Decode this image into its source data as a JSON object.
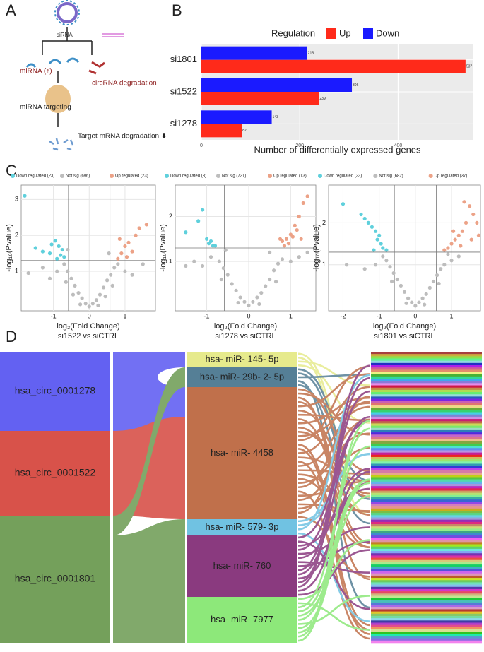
{
  "panel_labels": [
    "A",
    "B",
    "C",
    "D"
  ],
  "panel_a": {
    "sirna": "siRNA",
    "mirna_up": "miRNA (↑)",
    "circ_deg": "circRNA degradation",
    "targeting": "miRNA targeting",
    "target_deg": "Target mRNA degradation ⬇"
  },
  "chart_data": [
    {
      "type": "bar",
      "orientation": "horizontal",
      "legend_title": "Regulation",
      "legend_position": "top",
      "xlabel": "Number of differentially expressed genes",
      "categories": [
        "si1801",
        "si1522",
        "si1278"
      ],
      "series": [
        {
          "name": "Up",
          "color": "#ff2a1a",
          "values": [
            537,
            239,
            82
          ]
        },
        {
          "name": "Down",
          "color": "#1a1aff",
          "values": [
            215,
            306,
            143
          ]
        }
      ],
      "xlim": [
        0,
        553
      ],
      "xticks": [
        0,
        200,
        400
      ],
      "grid": true
    },
    {
      "type": "scatter",
      "xlabel": "log₂(Fold Change)",
      "ylabel": "-log₁₀(Pvalue)",
      "subtitle": "si1522 vs siCTRL",
      "xlim": [
        -1.9,
        1.85
      ],
      "ylim": [
        -0.1,
        3.4
      ],
      "xticks": [
        -1,
        0,
        1
      ],
      "yticks": [
        1,
        2,
        3
      ],
      "hlines": [
        1.3
      ],
      "vlines": [
        -0.58,
        0.58
      ],
      "grid": true,
      "series": [
        {
          "name": "Down regulated (23)",
          "color": "#5fd0dc",
          "x": [
            -1.8,
            -1.5,
            -1.3,
            -1.1,
            -0.95,
            -0.85,
            -0.8,
            -0.75,
            -0.7,
            -0.9,
            -1.05
          ],
          "values": [
            3.1,
            1.65,
            1.55,
            1.5,
            1.85,
            1.7,
            1.45,
            1.6,
            1.4,
            1.35,
            1.75
          ]
        },
        {
          "name": "Not sig (696)",
          "color": "#bdbdbd",
          "x": [
            0,
            0.1,
            -0.1,
            0.2,
            -0.2,
            0.3,
            -0.3,
            0.4,
            -0.4,
            0.5,
            -0.5,
            0.6,
            -0.6,
            0.7,
            -0.7,
            0.8,
            -0.9,
            1.0,
            -1.1,
            1.2,
            -1.3,
            0.55,
            -0.6,
            0.45,
            -0.45,
            0.25,
            -0.25,
            -1.7,
            1.5,
            0.65,
            -0.65
          ],
          "values": [
            0.02,
            0.1,
            0.1,
            0.2,
            0.25,
            0.35,
            0.4,
            0.55,
            0.6,
            0.75,
            0.8,
            0.9,
            1.0,
            1.1,
            1.2,
            1.2,
            1.0,
            1.0,
            0.8,
            0.9,
            1.1,
            1.5,
            1.6,
            0.3,
            0.35,
            0.05,
            0.08,
            0.95,
            1.2,
            0.6,
            0.7
          ]
        },
        {
          "name": "Up regulated (23)",
          "color": "#eca287",
          "x": [
            0.8,
            0.9,
            1.0,
            1.1,
            1.2,
            1.3,
            1.4,
            1.6,
            0.85,
            1.05
          ],
          "values": [
            1.35,
            1.5,
            1.7,
            1.8,
            1.55,
            2.0,
            2.2,
            2.3,
            1.9,
            1.4
          ]
        }
      ]
    },
    {
      "type": "scatter",
      "xlabel": "log₂(Fold Change)",
      "ylabel": "-log₁₀(Pvalue)",
      "subtitle": "si1278 vs siCTRL",
      "xlim": [
        -1.75,
        1.6
      ],
      "ylim": [
        -0.1,
        2.7
      ],
      "xticks": [
        -1,
        0,
        1
      ],
      "yticks": [
        1,
        2
      ],
      "hlines": [
        1.3
      ],
      "vlines": [
        -0.58,
        0.58
      ],
      "grid": true,
      "series": [
        {
          "name": "Down regulated (8)",
          "color": "#5fd0dc",
          "x": [
            -1.5,
            -1.2,
            -1.1,
            -0.95,
            -0.85,
            -0.9,
            -1.0,
            -0.8
          ],
          "values": [
            1.65,
            1.9,
            2.15,
            1.4,
            1.35,
            1.45,
            1.5,
            1.35
          ]
        },
        {
          "name": "Not sig (721)",
          "color": "#bdbdbd",
          "x": [
            0,
            0.1,
            -0.1,
            0.2,
            -0.2,
            0.3,
            -0.3,
            0.4,
            -0.4,
            0.5,
            -0.5,
            0.6,
            -0.6,
            0.7,
            -0.7,
            0.8,
            -0.9,
            1.0,
            -1.1,
            1.2,
            -1.3,
            0.5,
            -0.55,
            0.25,
            -0.25,
            -1.5,
            1.4,
            0.65,
            -0.65
          ],
          "values": [
            0.02,
            0.1,
            0.1,
            0.2,
            0.2,
            0.3,
            0.35,
            0.45,
            0.5,
            0.6,
            0.7,
            0.8,
            0.85,
            0.95,
            1.0,
            1.05,
            1.1,
            1.0,
            0.9,
            1.1,
            1.0,
            1.2,
            1.25,
            0.05,
            0.08,
            0.9,
            1.2,
            0.55,
            0.6
          ]
        },
        {
          "name": "Up regulated (13)",
          "color": "#eca287",
          "x": [
            1.4,
            1.3,
            1.2,
            1.1,
            1.0,
            0.9,
            0.8,
            0.85,
            0.95,
            1.05,
            0.75,
            1.15,
            1.25
          ],
          "values": [
            2.45,
            2.3,
            2.0,
            1.8,
            1.6,
            1.5,
            1.45,
            1.35,
            1.4,
            1.55,
            1.5,
            1.7,
            1.5
          ]
        }
      ]
    },
    {
      "type": "scatter",
      "xlabel": "log₂(Fold Change)",
      "ylabel": "-log₁₀(Pvalue)",
      "subtitle": "si1801 vs siCTRL",
      "xlim": [
        -2.4,
        1.8
      ],
      "ylim": [
        -0.1,
        2.9
      ],
      "xticks": [
        -2,
        -1,
        0,
        1
      ],
      "yticks": [
        1,
        2
      ],
      "hlines": [
        1.3
      ],
      "vlines": [
        -0.58,
        0.58
      ],
      "grid": true,
      "series": [
        {
          "name": "Down regulated (23)",
          "color": "#5fd0dc",
          "x": [
            -2.0,
            -1.5,
            -1.4,
            -1.3,
            -1.2,
            -1.1,
            -1.0,
            -0.95,
            -1.05,
            -0.9,
            -1.15,
            -0.8
          ],
          "values": [
            2.45,
            2.2,
            2.1,
            2.0,
            1.9,
            1.8,
            1.7,
            1.5,
            1.6,
            1.4,
            1.35,
            1.35
          ]
        },
        {
          "name": "Not sig (682)",
          "color": "#bdbdbd",
          "x": [
            0,
            0.1,
            -0.1,
            0.2,
            -0.2,
            0.3,
            -0.3,
            0.4,
            -0.4,
            0.5,
            -0.5,
            0.6,
            -0.6,
            0.7,
            -0.7,
            0.8,
            -0.8,
            1.0,
            -1.1,
            1.2,
            -1.4,
            0.9,
            -0.9,
            0.25,
            -0.25,
            -1.9,
            0.65,
            -0.65
          ],
          "values": [
            0.02,
            0.1,
            0.1,
            0.2,
            0.2,
            0.3,
            0.35,
            0.45,
            0.5,
            0.6,
            0.65,
            0.75,
            0.8,
            0.9,
            0.95,
            1.0,
            1.1,
            1.1,
            1.0,
            1.2,
            0.9,
            1.25,
            1.2,
            0.05,
            0.08,
            1.0,
            0.55,
            0.6
          ]
        },
        {
          "name": "Up regulated (37)",
          "color": "#eca287",
          "x": [
            1.7,
            1.6,
            1.5,
            1.4,
            1.3,
            1.2,
            1.1,
            1.0,
            0.9,
            0.8,
            1.35,
            1.55,
            1.75,
            1.25,
            1.05
          ],
          "values": [
            2.0,
            2.2,
            2.4,
            2.0,
            1.8,
            1.7,
            1.6,
            1.5,
            1.4,
            1.35,
            2.5,
            1.6,
            1.7,
            1.45,
            1.8
          ]
        }
      ]
    }
  ],
  "sankey": {
    "sources": [
      {
        "label": "hsa_circ_0001278",
        "color": "#6361f2",
        "size": 112
      },
      {
        "label": "hsa_circ_0001522",
        "color": "#d8524a",
        "size": 120
      },
      {
        "label": "hsa_circ_0001801",
        "color": "#74a05b",
        "size": 180
      }
    ],
    "targets": [
      {
        "label": "hsa- miR- 145- 5p",
        "color": "#e6ea8c",
        "size": 22
      },
      {
        "label": "hsa- miR- 29b- 2- 5p",
        "color": "#557f96",
        "size": 28
      },
      {
        "label": "hsa- miR- 4458",
        "color": "#c0704b",
        "size": 187
      },
      {
        "label": "hsa- miR- 579- 3p",
        "color": "#70c2e2",
        "size": 23
      },
      {
        "label": "hsa- miR- 760",
        "color": "#8a3a7f",
        "size": 87
      },
      {
        "label": "hsa- miR- 7977",
        "color": "#8de87a",
        "size": 65
      }
    ]
  }
}
